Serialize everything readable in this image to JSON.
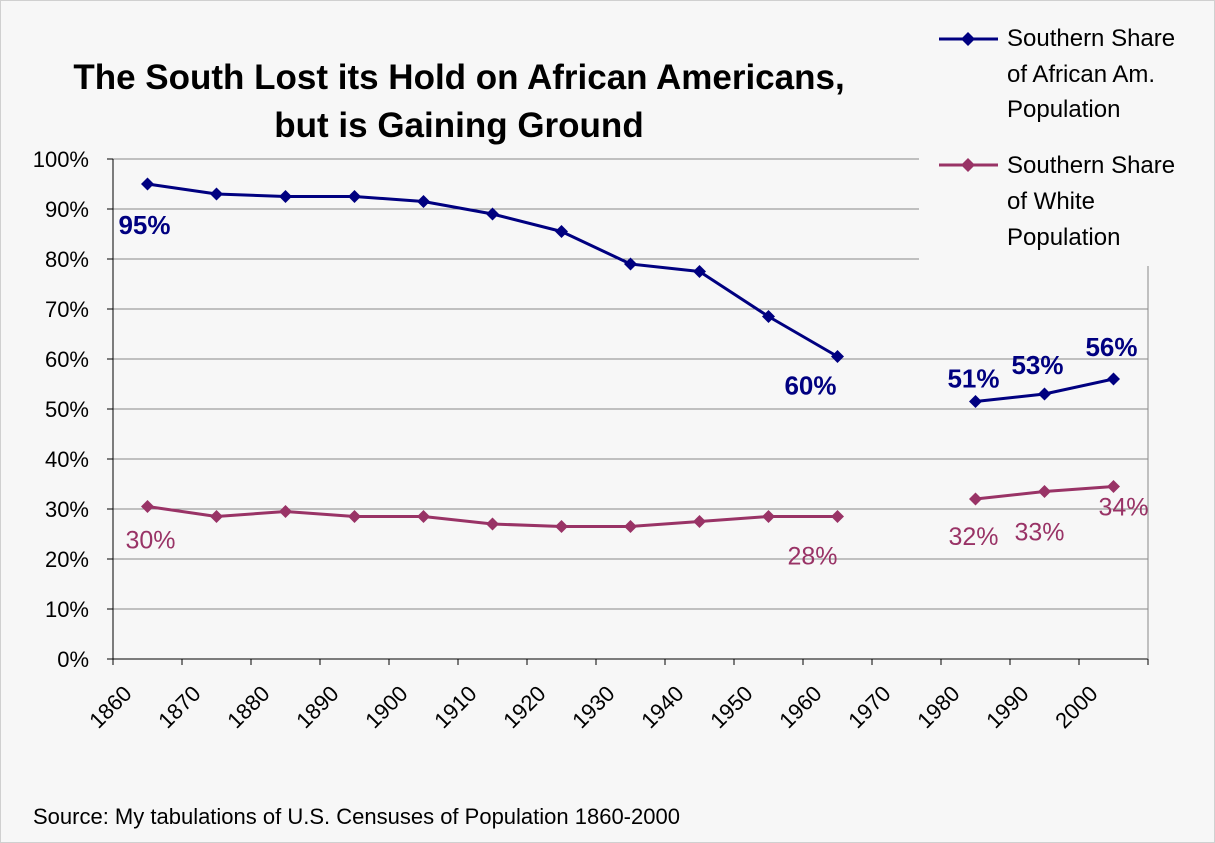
{
  "chart_data": {
    "type": "line",
    "title_lines": [
      "The South Lost its Hold on African Americans,",
      "but is Gaining Ground"
    ],
    "source": "Source: My tabulations of U.S. Censuses of Population 1860-2000",
    "x_ticks": [
      "1860",
      "1870",
      "1880",
      "1890",
      "1900",
      "1910",
      "1920",
      "1930",
      "1940",
      "1950",
      "1960",
      "1970",
      "1980",
      "1990",
      "2000"
    ],
    "y_ticks": [
      "0%",
      "10%",
      "20%",
      "30%",
      "40%",
      "50%",
      "60%",
      "70%",
      "80%",
      "90%",
      "100%"
    ],
    "ylim": [
      0,
      1
    ],
    "grid": true,
    "legend_position": "top-right",
    "series": [
      {
        "name_lines": [
          "Southern Share",
          "of African Am.",
          "Population"
        ],
        "color": "#000080",
        "values": [
          0.95,
          0.93,
          0.925,
          0.925,
          0.915,
          0.89,
          0.855,
          0.79,
          0.775,
          0.685,
          0.605,
          null,
          0.515,
          0.53,
          0.56
        ],
        "data_labels": [
          {
            "index": 0,
            "text": "95%"
          },
          {
            "index": 10,
            "text": "60%"
          },
          {
            "index": 12,
            "text": "51%"
          },
          {
            "index": 13,
            "text": "53%"
          },
          {
            "index": 14,
            "text": "56%"
          }
        ]
      },
      {
        "name_lines": [
          "Southern Share",
          "of White",
          "Population"
        ],
        "color": "#993366",
        "values": [
          0.305,
          0.285,
          0.295,
          0.285,
          0.285,
          0.27,
          0.265,
          0.265,
          0.275,
          0.285,
          0.285,
          null,
          0.32,
          0.335,
          0.345
        ],
        "data_labels": [
          {
            "index": 0,
            "text": "30%"
          },
          {
            "index": 10,
            "text": "28%"
          },
          {
            "index": 12,
            "text": "32%"
          },
          {
            "index": 13,
            "text": "33%"
          },
          {
            "index": 14,
            "text": "34%"
          }
        ]
      }
    ]
  }
}
